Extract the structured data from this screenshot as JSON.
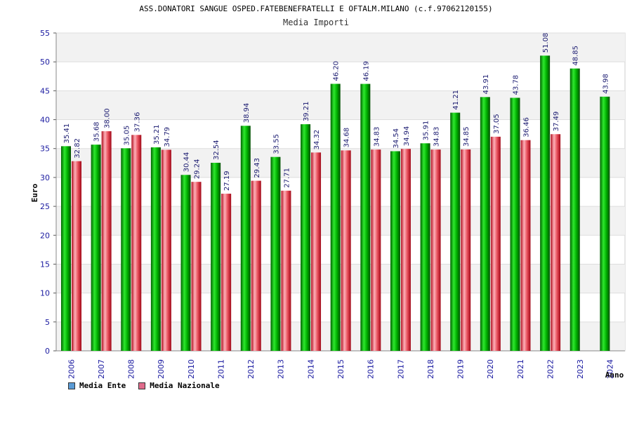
{
  "chart_data": {
    "type": "bar",
    "title": "ASS.DONATORI SANGUE OSPED.FATEBENEFRATELLI E OFTALM.MILANO (c.f.97062120155)",
    "subtitle": "Media Importi",
    "ylabel": "Euro",
    "xlabel": "Anno",
    "ylim": [
      0,
      55
    ],
    "yticks": [
      0,
      5,
      10,
      15,
      20,
      25,
      30,
      35,
      40,
      45,
      50,
      55
    ],
    "grid": true,
    "legend_position": "bottom-left",
    "categories": [
      "2006",
      "2007",
      "2008",
      "2009",
      "2010",
      "2011",
      "2012",
      "2013",
      "2014",
      "2015",
      "2016",
      "2017",
      "2018",
      "2019",
      "2020",
      "2021",
      "2022",
      "2023",
      "2024"
    ],
    "series": [
      {
        "name": "Media Ente",
        "color": "#00a000",
        "legend_color": "#5b9bd5",
        "values": [
          35.41,
          35.68,
          35.05,
          35.21,
          30.44,
          32.54,
          38.94,
          33.55,
          39.21,
          46.2,
          46.19,
          34.54,
          35.91,
          41.21,
          43.91,
          43.78,
          51.08,
          48.85,
          43.98
        ],
        "labels": [
          "35.41",
          "35.68",
          "35.05",
          "35.21",
          "30.44",
          "32.54",
          "38.94",
          "33.55",
          "39.21",
          "46.20",
          "46.19",
          "34.54",
          "35.91",
          "41.21",
          "43.91",
          "43.78",
          "51.08",
          "48.85",
          "43.98"
        ]
      },
      {
        "name": "Media Nazionale",
        "color": "#e0303c",
        "legend_color": "#e06c8c",
        "values": [
          32.82,
          38.0,
          37.36,
          34.79,
          29.24,
          27.19,
          29.43,
          27.71,
          34.32,
          34.68,
          34.83,
          34.94,
          34.83,
          34.85,
          37.05,
          36.46,
          37.49,
          null,
          null
        ],
        "labels": [
          "32.82",
          "38.00",
          "37.36",
          "34.79",
          "29.24",
          "27.19",
          "29.43",
          "27.71",
          "34.32",
          "34.68",
          "34.83",
          "34.94",
          "34.83",
          "34.85",
          "37.05",
          "36.46",
          "37.49",
          null,
          null
        ]
      }
    ]
  }
}
